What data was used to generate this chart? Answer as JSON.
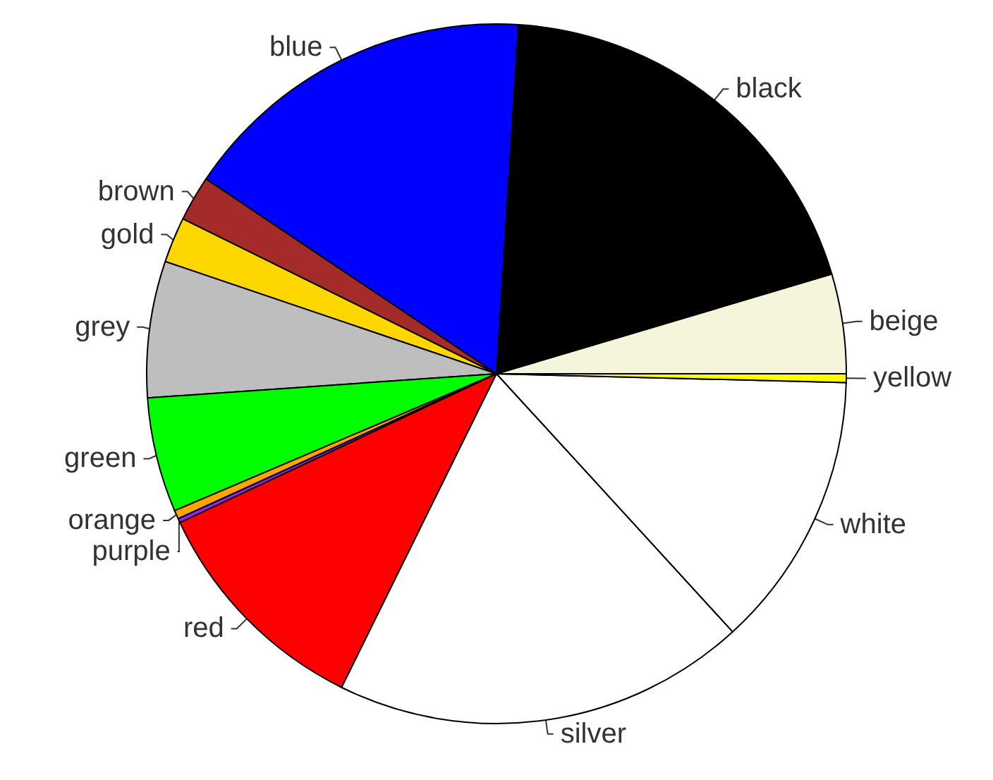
{
  "chart_data": {
    "type": "pie",
    "categories": [
      "beige",
      "black",
      "blue",
      "brown",
      "gold",
      "grey",
      "green",
      "orange",
      "purple",
      "red",
      "silver",
      "white",
      "yellow"
    ],
    "values": [
      4.6,
      19.4,
      16.6,
      2.1,
      2.1,
      6.3,
      5.3,
      0.4,
      0.2,
      10.7,
      19.1,
      12.8,
      0.4
    ],
    "colors": [
      "#f5f5dc",
      "#000000",
      "#0000ff",
      "#a52a2a",
      "#ffd700",
      "#bebebe",
      "#00ff00",
      "#ffa500",
      "#a020f0",
      "#ff0000",
      "#ffffff",
      "#ffffff",
      "#ffff00"
    ],
    "legend": false
  }
}
